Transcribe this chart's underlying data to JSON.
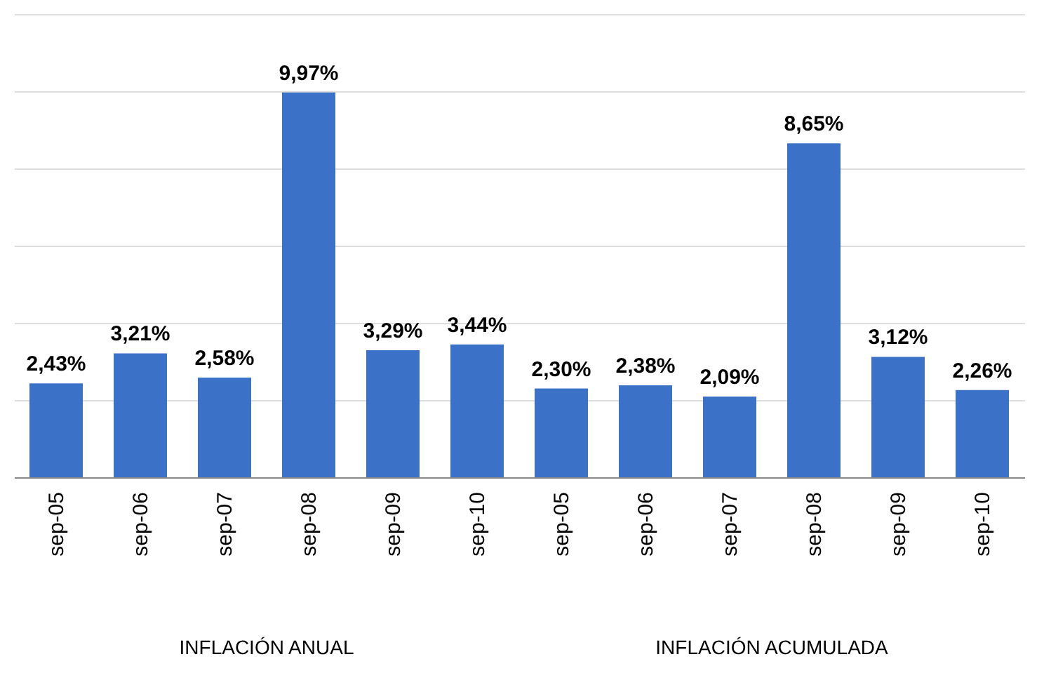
{
  "chart_data": {
    "type": "bar",
    "categories": [
      "sep-05",
      "sep-06",
      "sep-07",
      "sep-08",
      "sep-09",
      "sep-10",
      "sep-05",
      "sep-06",
      "sep-07",
      "sep-08",
      "sep-09",
      "sep-10"
    ],
    "values": [
      2.43,
      3.21,
      2.58,
      9.97,
      3.29,
      3.44,
      2.3,
      2.38,
      2.09,
      8.65,
      3.12,
      2.26
    ],
    "value_labels": [
      "2,43%",
      "3,21%",
      "2,58%",
      "9,97%",
      "3,29%",
      "3,44%",
      "2,30%",
      "2,38%",
      "2,09%",
      "8,65%",
      "3,12%",
      "2,26%"
    ],
    "color": "#3b72c8",
    "ylim": [
      0,
      12
    ],
    "yticks": [
      {
        "value": 0,
        "label": null
      },
      {
        "value": 2,
        "label": null
      },
      {
        "value": 4,
        "label": null
      },
      {
        "value": 6,
        "label": null
      },
      {
        "value": 8,
        "label": null
      },
      {
        "value": 10,
        "label": null
      },
      {
        "value": 12,
        "label": null
      }
    ],
    "grid": "y",
    "tick_labels": "x",
    "annotations": [
      "INFLACIÓN ANUAL",
      "INFLACIÓN ACUMULADA"
    ]
  }
}
